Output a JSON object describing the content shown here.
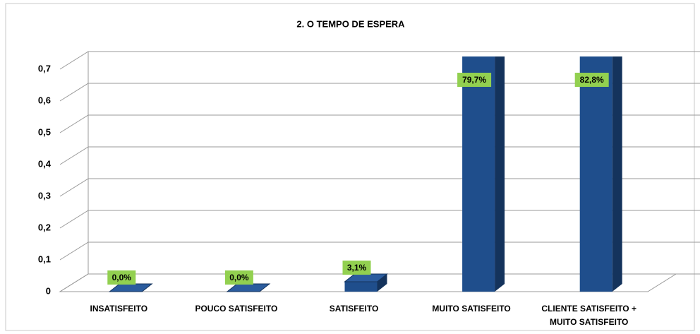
{
  "chart_data": {
    "type": "bar3d",
    "title": "2. O TEMPO DE ESPERA",
    "categories": [
      "INSATISFEITO",
      "POUCO SATISFEITO",
      "SATISFEITO",
      "MUITO SATISFEITO",
      "CLIENTE SATISFEITO + MUITO SATISFEITO"
    ],
    "values": [
      0,
      0,
      0.031,
      0.797,
      0.828
    ],
    "value_labels": [
      "0,0%",
      "0,0%",
      "3,1%",
      "79,7%",
      "82,8%"
    ],
    "color": "#1f4e8c",
    "label_color": "#92d050",
    "ylim": [
      0,
      0.7
    ],
    "yticks": [
      0,
      {
        "value": 0.1,
        "label": "0,1"
      },
      {
        "value": 0.2,
        "label": "0,2"
      },
      {
        "value": 0.3,
        "label": "0,3"
      },
      {
        "value": 0.4,
        "label": "0,4"
      },
      {
        "value": 0.5,
        "label": "0,5"
      },
      {
        "value": 0.6,
        "label": "0,6"
      },
      {
        "value": 0.7,
        "label": "0,7"
      }
    ],
    "grid": true
  }
}
